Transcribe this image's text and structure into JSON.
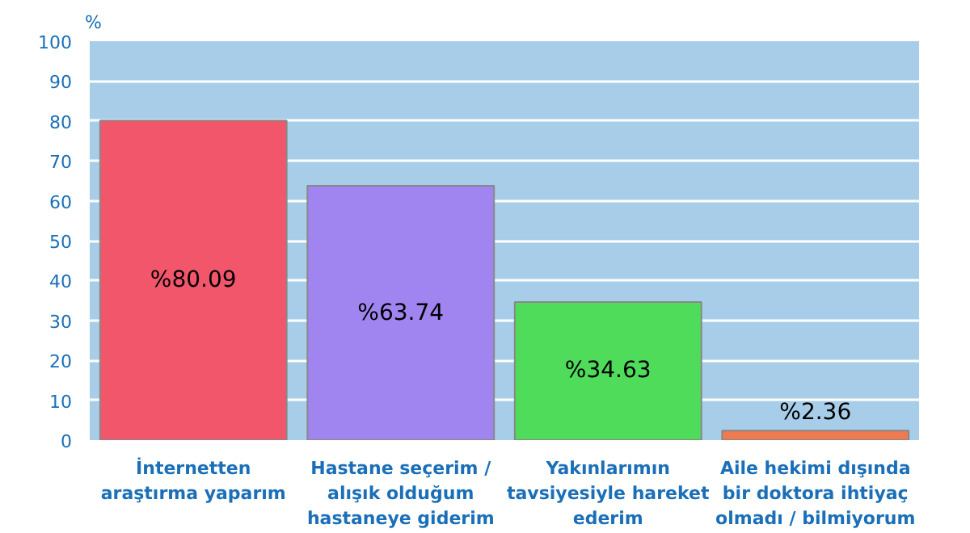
{
  "chart_data": {
    "type": "bar",
    "ylabel": "%",
    "categories": [
      "İnternetten araştırma yaparım",
      "Hastane seçerim / alışık olduğum hastaneye giderim",
      "Yakınlarımın tavsiyesiyle hareket ederim",
      "Aile hekimi dışında bir doktora ihtiyaç olmadı / bilmiyorum"
    ],
    "values": [
      80.09,
      63.74,
      34.63,
      2.36
    ],
    "colors": [
      "#f2566b",
      "#a084f0",
      "#4fdc5a",
      "#f07a50"
    ],
    "value_labels": [
      "%80.09",
      "%63.74",
      "%34.63",
      "%2.36"
    ],
    "ylim": [
      0,
      100
    ],
    "yticks": [
      0,
      10,
      20,
      30,
      40,
      50,
      60,
      70,
      80,
      90,
      100
    ],
    "grid": "y"
  }
}
